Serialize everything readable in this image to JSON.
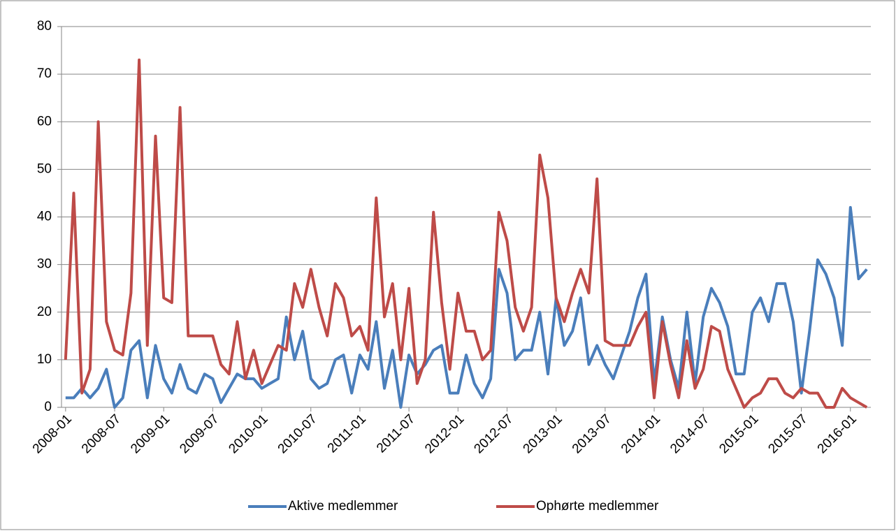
{
  "chart_data": {
    "type": "line",
    "categories": [
      "2008-01",
      null,
      null,
      null,
      null,
      null,
      "2008-07",
      null,
      null,
      null,
      null,
      null,
      "2009-01",
      null,
      null,
      null,
      null,
      null,
      "2009-07",
      null,
      null,
      null,
      null,
      null,
      "2010-01",
      null,
      null,
      null,
      null,
      null,
      "2010-07",
      null,
      null,
      null,
      null,
      null,
      "2011-01",
      null,
      null,
      null,
      null,
      null,
      "2011-07",
      null,
      null,
      null,
      null,
      null,
      "2012-01",
      null,
      null,
      null,
      null,
      null,
      "2012-07",
      null,
      null,
      null,
      null,
      null,
      "2013-01",
      null,
      null,
      null,
      null,
      null,
      "2013-07",
      null,
      null,
      null,
      null,
      null,
      "2014-01",
      null,
      null,
      null,
      null,
      null,
      "2014-07",
      null,
      null,
      null,
      null,
      null,
      "2015-01",
      null,
      null,
      null,
      null,
      null,
      "2015-07",
      null,
      null,
      null,
      null,
      null,
      "2016-01",
      null,
      null
    ],
    "series": [
      {
        "name": "Aktive medlemmer",
        "color": "#4a7ebb",
        "values": [
          2,
          2,
          4,
          2,
          4,
          8,
          0,
          2,
          12,
          14,
          2,
          13,
          6,
          3,
          9,
          4,
          3,
          7,
          6,
          1,
          4,
          7,
          6,
          6,
          4,
          5,
          6,
          19,
          10,
          16,
          6,
          4,
          5,
          10,
          11,
          3,
          11,
          8,
          18,
          4,
          12,
          0,
          11,
          7,
          9,
          12,
          13,
          3,
          3,
          11,
          5,
          2,
          6,
          29,
          24,
          10,
          12,
          12,
          20,
          7,
          23,
          13,
          16,
          23,
          9,
          13,
          9,
          6,
          11,
          16,
          23,
          28,
          5,
          19,
          10,
          4,
          20,
          5,
          19,
          25,
          22,
          17,
          7,
          7,
          20,
          23,
          18,
          26,
          26,
          18,
          3,
          16,
          31,
          28,
          23,
          13,
          42,
          27,
          29
        ]
      },
      {
        "name": "Ophørte medlemmer",
        "color": "#be4b48",
        "values": [
          10,
          45,
          3,
          8,
          60,
          18,
          12,
          11,
          24,
          73,
          13,
          57,
          23,
          22,
          63,
          15,
          15,
          15,
          15,
          9,
          7,
          18,
          6,
          12,
          5,
          9,
          13,
          12,
          26,
          21,
          29,
          21,
          15,
          26,
          23,
          15,
          17,
          12,
          44,
          19,
          26,
          10,
          25,
          5,
          10,
          41,
          22,
          8,
          24,
          16,
          16,
          10,
          12,
          41,
          35,
          21,
          16,
          21,
          53,
          44,
          23,
          18,
          24,
          29,
          24,
          48,
          14,
          13,
          13,
          13,
          17,
          20,
          2,
          18,
          9,
          2,
          14,
          4,
          8,
          17,
          16,
          8,
          4,
          0,
          2,
          3,
          6,
          6,
          3,
          2,
          4,
          3,
          3,
          0,
          0,
          4,
          2,
          1,
          0
        ]
      }
    ],
    "ylim": [
      0,
      80
    ],
    "yticks": [
      0,
      10,
      20,
      30,
      40,
      50,
      60,
      70,
      80
    ],
    "grid": true,
    "legend": "bottom"
  }
}
